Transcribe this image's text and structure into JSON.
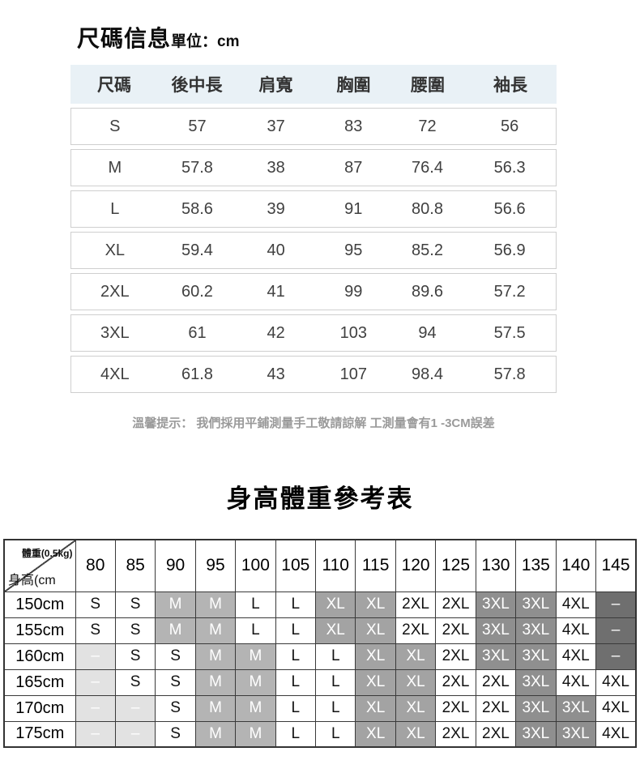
{
  "colors": {
    "table1_header_bg": "#e9f1f6",
    "row_border": "#cfcfcf",
    "tip_text": "#9a9a9a",
    "grid_border": "#3a3a3a",
    "gray_m": "#b4b4b4",
    "gray_xl": "#a3a3a3",
    "gray_3xl": "#8f8f8f",
    "gray_dash_light": "#e2e2e2",
    "gray_dash_dark": "#6f6f6f"
  },
  "size_section": {
    "title": "尺碼信息",
    "unit_label": "單位：cm",
    "columns": [
      "尺碼",
      "後中長",
      "肩寬",
      "胸圍",
      "腰圍",
      "袖長"
    ],
    "rows": [
      [
        "S",
        "57",
        "37",
        "83",
        "72",
        "56"
      ],
      [
        "M",
        "57.8",
        "38",
        "87",
        "76.4",
        "56.3"
      ],
      [
        "L",
        "58.6",
        "39",
        "91",
        "80.8",
        "56.6"
      ],
      [
        "XL",
        "59.4",
        "40",
        "95",
        "85.2",
        "56.9"
      ],
      [
        "2XL",
        "60.2",
        "41",
        "99",
        "89.6",
        "57.2"
      ],
      [
        "3XL",
        "61",
        "42",
        "103",
        "94",
        "57.5"
      ],
      [
        "4XL",
        "61.8",
        "43",
        "107",
        "98.4",
        "57.8"
      ]
    ],
    "tip": "溫馨提示： 我們採用平鋪測量手工敬請諒解 工測量會有1 -3CM誤差"
  },
  "reference_section": {
    "title": "身高體重參考表",
    "corner": {
      "top_label": "體重(0.5kg)",
      "bottom_label": "身高(cm"
    },
    "weight_columns": [
      "80",
      "85",
      "90",
      "95",
      "100",
      "105",
      "110",
      "115",
      "120",
      "125",
      "130",
      "135",
      "140",
      "145"
    ],
    "rows": [
      {
        "height": "150cm",
        "cells": [
          {
            "v": "S",
            "c": "w"
          },
          {
            "v": "S",
            "c": "w"
          },
          {
            "v": "M",
            "c": "g1"
          },
          {
            "v": "M",
            "c": "g1"
          },
          {
            "v": "L",
            "c": "w"
          },
          {
            "v": "L",
            "c": "w"
          },
          {
            "v": "XL",
            "c": "g2"
          },
          {
            "v": "XL",
            "c": "g2"
          },
          {
            "v": "2XL",
            "c": "w"
          },
          {
            "v": "2XL",
            "c": "w"
          },
          {
            "v": "3XL",
            "c": "g3"
          },
          {
            "v": "3XL",
            "c": "g3"
          },
          {
            "v": "4XL",
            "c": "w"
          },
          {
            "v": "–",
            "c": "dd"
          }
        ]
      },
      {
        "height": "155cm",
        "cells": [
          {
            "v": "S",
            "c": "w"
          },
          {
            "v": "S",
            "c": "w"
          },
          {
            "v": "M",
            "c": "g1"
          },
          {
            "v": "M",
            "c": "g1"
          },
          {
            "v": "L",
            "c": "w"
          },
          {
            "v": "L",
            "c": "w"
          },
          {
            "v": "XL",
            "c": "g2"
          },
          {
            "v": "XL",
            "c": "g2"
          },
          {
            "v": "2XL",
            "c": "w"
          },
          {
            "v": "2XL",
            "c": "w"
          },
          {
            "v": "3XL",
            "c": "g3"
          },
          {
            "v": "3XL",
            "c": "g3"
          },
          {
            "v": "4XL",
            "c": "w"
          },
          {
            "v": "–",
            "c": "dd"
          }
        ]
      },
      {
        "height": "160cm",
        "cells": [
          {
            "v": "–",
            "c": "dl"
          },
          {
            "v": "S",
            "c": "w"
          },
          {
            "v": "S",
            "c": "w"
          },
          {
            "v": "M",
            "c": "g1"
          },
          {
            "v": "M",
            "c": "g1"
          },
          {
            "v": "L",
            "c": "w"
          },
          {
            "v": "L",
            "c": "w"
          },
          {
            "v": "XL",
            "c": "g2"
          },
          {
            "v": "XL",
            "c": "g2"
          },
          {
            "v": "2XL",
            "c": "w"
          },
          {
            "v": "3XL",
            "c": "g3"
          },
          {
            "v": "3XL",
            "c": "g3"
          },
          {
            "v": "4XL",
            "c": "w"
          },
          {
            "v": "–",
            "c": "dd"
          }
        ]
      },
      {
        "height": "165cm",
        "cells": [
          {
            "v": "–",
            "c": "dl"
          },
          {
            "v": "S",
            "c": "w"
          },
          {
            "v": "S",
            "c": "w"
          },
          {
            "v": "M",
            "c": "g1"
          },
          {
            "v": "M",
            "c": "g1"
          },
          {
            "v": "L",
            "c": "w"
          },
          {
            "v": "L",
            "c": "w"
          },
          {
            "v": "XL",
            "c": "g2"
          },
          {
            "v": "XL",
            "c": "g2"
          },
          {
            "v": "2XL",
            "c": "w"
          },
          {
            "v": "2XL",
            "c": "w"
          },
          {
            "v": "3XL",
            "c": "g3"
          },
          {
            "v": "4XL",
            "c": "w"
          },
          {
            "v": "4XL",
            "c": "w"
          }
        ]
      },
      {
        "height": "170cm",
        "cells": [
          {
            "v": "–",
            "c": "dl"
          },
          {
            "v": "–",
            "c": "dl"
          },
          {
            "v": "S",
            "c": "w"
          },
          {
            "v": "M",
            "c": "g1"
          },
          {
            "v": "M",
            "c": "g1"
          },
          {
            "v": "L",
            "c": "w"
          },
          {
            "v": "L",
            "c": "w"
          },
          {
            "v": "XL",
            "c": "g2"
          },
          {
            "v": "XL",
            "c": "g2"
          },
          {
            "v": "2XL",
            "c": "w"
          },
          {
            "v": "2XL",
            "c": "w"
          },
          {
            "v": "3XL",
            "c": "g3"
          },
          {
            "v": "3XL",
            "c": "g3"
          },
          {
            "v": "4XL",
            "c": "w"
          }
        ]
      },
      {
        "height": "175cm",
        "cells": [
          {
            "v": "–",
            "c": "dl"
          },
          {
            "v": "–",
            "c": "dl"
          },
          {
            "v": "S",
            "c": "w"
          },
          {
            "v": "M",
            "c": "g1"
          },
          {
            "v": "M",
            "c": "g1"
          },
          {
            "v": "L",
            "c": "w"
          },
          {
            "v": "L",
            "c": "w"
          },
          {
            "v": "XL",
            "c": "g2"
          },
          {
            "v": "XL",
            "c": "g2"
          },
          {
            "v": "2XL",
            "c": "w"
          },
          {
            "v": "2XL",
            "c": "w"
          },
          {
            "v": "3XL",
            "c": "g3"
          },
          {
            "v": "3XL",
            "c": "g3"
          },
          {
            "v": "4XL",
            "c": "w"
          }
        ]
      }
    ]
  }
}
